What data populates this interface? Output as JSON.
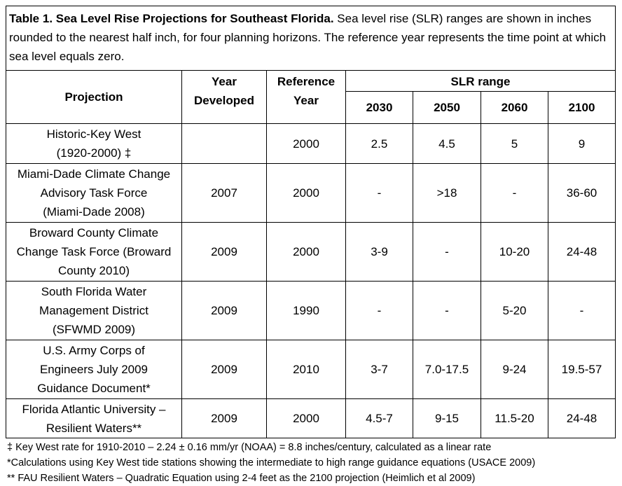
{
  "caption": {
    "label": "Table 1. Sea Level Rise Projections for Southeast Florida.",
    "text": " Sea level rise (SLR) ranges are shown in inches rounded to the nearest half inch, for four planning horizons. The reference year represents the time point at which sea level equals zero."
  },
  "headers": {
    "projection": "Projection",
    "year_developed_1": "Year",
    "year_developed_2": "Developed",
    "reference_year_1": "Reference",
    "reference_year_2": "Year",
    "slr_range": "SLR range",
    "years": [
      "2030",
      "2050",
      "2060",
      "2100"
    ]
  },
  "rows": [
    {
      "projection": [
        "Historic-Key West",
        "(1920-2000) ‡"
      ],
      "developed": "",
      "reference": "2000",
      "values": [
        "2.5",
        "4.5",
        "5",
        "9"
      ]
    },
    {
      "projection": [
        "Miami-Dade Climate Change",
        "Advisory Task Force",
        "(Miami-Dade 2008)"
      ],
      "developed": "2007",
      "reference": "2000",
      "values": [
        "-",
        ">18",
        "-",
        "36-60"
      ]
    },
    {
      "projection": [
        "Broward County Climate",
        "Change Task Force (Broward",
        "County 2010)"
      ],
      "developed": "2009",
      "reference": "2000",
      "values": [
        "3-9",
        "-",
        "10-20",
        "24-48"
      ]
    },
    {
      "projection": [
        "South Florida Water",
        "Management District",
        "(SFWMD 2009)"
      ],
      "developed": "2009",
      "reference": "1990",
      "values": [
        "-",
        "-",
        "5-20",
        "-"
      ]
    },
    {
      "projection": [
        "U.S. Army Corps of",
        "Engineers July 2009",
        "Guidance Document*"
      ],
      "developed": "2009",
      "reference": "2010",
      "values": [
        "3-7",
        "7.0-17.5",
        "9-24",
        "19.5-57"
      ]
    },
    {
      "projection": [
        "Florida Atlantic University –",
        "Resilient Waters**"
      ],
      "developed": "2009",
      "reference": "2000",
      "values": [
        "4.5-7",
        "9-15",
        "11.5-20",
        "24-48"
      ]
    }
  ],
  "footnotes": [
    "‡ Key West rate for 1910-2010 – 2.24 ± 0.16 mm/yr (NOAA) = 8.8 inches/century, calculated as a linear rate",
    "*Calculations using Key West tide stations showing the intermediate to high range guidance equations (USACE 2009)",
    "** FAU Resilient Waters – Quadratic Equation using 2-4 feet as the 2100 projection (Heimlich et al 2009)"
  ]
}
